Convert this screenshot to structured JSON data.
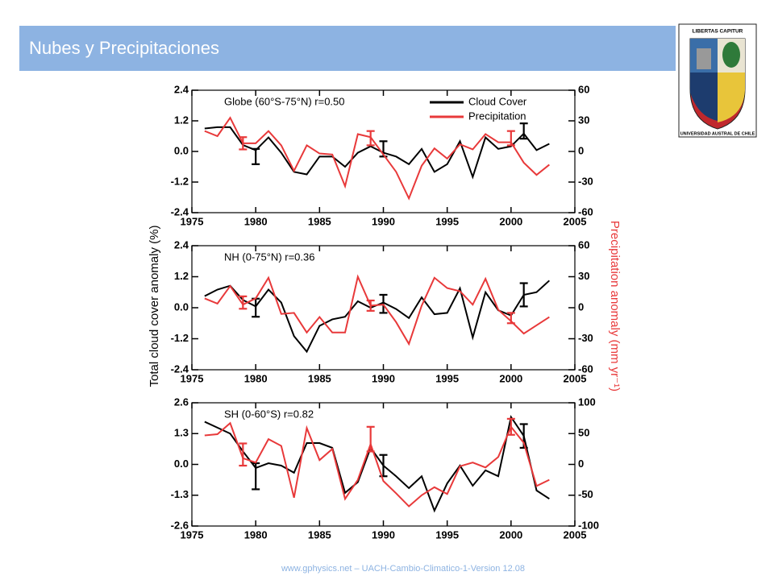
{
  "header": {
    "title": "Nubes y Precipitaciones"
  },
  "logo": {
    "motto": "LIBERTAS CAPITUR",
    "name": "UNIVERSIDAD AUSTRAL DE CHILE"
  },
  "footer": "www.gphysics.net – UACH-Cambio-Climatico-1-Version 12.08",
  "ylabel": "Total cloud cover anomaly (%)",
  "y2label": "Precipitation anomaly (mm yr⁻¹)",
  "chart_data": [
    {
      "type": "line",
      "title": "Globe (60°S-75°N)  r=0.50",
      "legend": "upper right",
      "x": [
        1976,
        1977,
        1978,
        1979,
        1980,
        1981,
        1982,
        1983,
        1984,
        1985,
        1986,
        1987,
        1988,
        1989,
        1990,
        1991,
        1992,
        1993,
        1994,
        1995,
        1996,
        1997,
        1998,
        1999,
        2000,
        2001,
        2002,
        2003
      ],
      "xlim": [
        1975,
        2005
      ],
      "xticks": [
        1975,
        1980,
        1985,
        1990,
        1995,
        2000,
        2005
      ],
      "ylim": [
        -2.4,
        2.4
      ],
      "yticks": [
        2.4,
        1.2,
        {
          "value": 0,
          "label": "0.0"
        },
        -1.2,
        -2.4
      ],
      "y2lim": [
        -60,
        60
      ],
      "y2ticks": [
        60,
        30,
        0,
        -30,
        -60
      ],
      "series": [
        {
          "name": "Cloud Cover",
          "color": "#000000",
          "axis": "y",
          "values": [
            0.9,
            0.95,
            0.95,
            0.25,
            0.05,
            0.55,
            -0.05,
            -0.8,
            -0.9,
            -0.2,
            -0.2,
            -0.6,
            -0.05,
            0.2,
            -0.05,
            -0.2,
            -0.5,
            0.1,
            -0.8,
            -0.5,
            0.4,
            -1.0,
            0.55,
            0.1,
            0.2,
            0.7,
            0.05,
            0.3
          ],
          "error_bars": [
            {
              "x": 1980,
              "value": -0.2,
              "error": 0.3
            },
            {
              "x": 1990,
              "value": 0.1,
              "error": 0.3
            },
            {
              "x": 2001,
              "value": 0.8,
              "error": 0.3
            }
          ]
        },
        {
          "name": "Precipitation",
          "color": "#e8393a",
          "axis": "y2",
          "values": [
            20,
            15,
            33,
            8,
            8,
            20,
            6,
            -19,
            6,
            -2,
            -3,
            -34,
            17,
            14,
            -3,
            -20,
            -46,
            -14,
            3,
            -7,
            7,
            2,
            17,
            9,
            9,
            -11,
            -23,
            -13
          ],
          "error_bars": [
            {
              "x": 1979,
              "value": 8,
              "error": 6
            },
            {
              "x": 1989,
              "value": 13,
              "error": 7
            },
            {
              "x": 2000,
              "value": 13,
              "error": 7
            }
          ]
        }
      ]
    },
    {
      "type": "line",
      "title": "NH (0-75°N)  r=0.36",
      "x": [
        1976,
        1977,
        1978,
        1979,
        1980,
        1981,
        1982,
        1983,
        1984,
        1985,
        1986,
        1987,
        1988,
        1989,
        1990,
        1991,
        1992,
        1993,
        1994,
        1995,
        1996,
        1997,
        1998,
        1999,
        2000,
        2001,
        2002,
        2003
      ],
      "xlim": [
        1975,
        2005
      ],
      "xticks": [
        1975,
        1980,
        1985,
        1990,
        1995,
        2000,
        2005
      ],
      "ylim": [
        -2.4,
        2.4
      ],
      "yticks": [
        2.4,
        1.2,
        {
          "value": 0,
          "label": "0.0"
        },
        -1.2,
        -2.4
      ],
      "y2lim": [
        -60,
        60
      ],
      "y2ticks": [
        60,
        30,
        0,
        -30,
        -60
      ],
      "series": [
        {
          "name": "Cloud Cover",
          "color": "#000000",
          "axis": "y",
          "values": [
            0.45,
            0.7,
            0.85,
            0.3,
            0.05,
            0.7,
            0.2,
            -1.1,
            -1.7,
            -0.7,
            -0.45,
            -0.35,
            0.25,
            0.0,
            0.2,
            -0.05,
            -0.4,
            0.4,
            -0.25,
            -0.2,
            0.75,
            -1.15,
            0.6,
            -0.1,
            -0.3,
            0.5,
            0.6,
            1.05
          ],
          "error_bars": [
            {
              "x": 1980,
              "value": 0,
              "error": 0.35
            },
            {
              "x": 1990,
              "value": 0.15,
              "error": 0.35
            },
            {
              "x": 2001,
              "value": 0.5,
              "error": 0.45
            }
          ]
        },
        {
          "name": "Precipitation",
          "color": "#e8393a",
          "axis": "y2",
          "values": [
            9,
            4,
            21,
            3,
            9,
            29,
            -6,
            -5,
            -24,
            -9,
            -24,
            -24,
            30,
            2,
            3,
            -14,
            -35,
            2,
            29,
            19,
            16,
            3,
            28,
            -2,
            -13,
            -25,
            -17,
            -9
          ],
          "error_bars": [
            {
              "x": 1979,
              "value": 5,
              "error": 6
            },
            {
              "x": 1989,
              "value": 2,
              "error": 5
            },
            {
              "x": 2000,
              "value": -10,
              "error": 5
            }
          ]
        }
      ]
    },
    {
      "type": "line",
      "title": "SH (0-60°S)  r=0.82",
      "x": [
        1976,
        1977,
        1978,
        1979,
        1980,
        1981,
        1982,
        1983,
        1984,
        1985,
        1986,
        1987,
        1988,
        1989,
        1990,
        1991,
        1992,
        1993,
        1994,
        1995,
        1996,
        1997,
        1998,
        1999,
        2000,
        2001,
        2002,
        2003
      ],
      "xlim": [
        1975,
        2005
      ],
      "xticks": [
        1975,
        1980,
        1985,
        1990,
        1995,
        2000,
        2005
      ],
      "ylim": [
        -2.6,
        2.6
      ],
      "yticks": [
        2.6,
        1.3,
        {
          "value": 0,
          "label": "0.0"
        },
        -1.3,
        -2.6
      ],
      "y2lim": [
        -100,
        100
      ],
      "y2ticks": [
        100,
        50,
        0,
        -50,
        -100
      ],
      "series": [
        {
          "name": "Cloud Cover",
          "color": "#000000",
          "axis": "y",
          "values": [
            1.8,
            1.55,
            1.3,
            0.55,
            -0.15,
            0.05,
            -0.05,
            -0.35,
            0.9,
            0.9,
            0.7,
            -1.2,
            -0.75,
            0.7,
            -0.05,
            -0.5,
            -1.0,
            -0.5,
            -1.95,
            -0.8,
            -0.05,
            -0.9,
            -0.25,
            -0.5,
            2.0,
            1.2,
            -1.1,
            -1.45
          ],
          "error_bars": [
            {
              "x": 1980,
              "value": -0.5,
              "error": 0.55
            },
            {
              "x": 1990,
              "value": -0.05,
              "error": 0.45
            },
            {
              "x": 2001,
              "value": 1.2,
              "error": 0.5
            }
          ]
        },
        {
          "name": "Precipitation",
          "color": "#e8393a",
          "axis": "y2",
          "values": [
            47,
            49,
            67,
            10,
            3,
            41,
            30,
            -54,
            59,
            7,
            25,
            -56,
            -25,
            33,
            -27,
            -47,
            -68,
            -50,
            -37,
            -48,
            -3,
            3,
            -5,
            12,
            61,
            35,
            -35,
            -25
          ],
          "error_bars": [
            {
              "x": 1979,
              "value": 16,
              "error": 18
            },
            {
              "x": 1989,
              "value": 41,
              "error": 20
            },
            {
              "x": 2000,
              "value": 61,
              "error": 13
            }
          ]
        }
      ]
    }
  ]
}
